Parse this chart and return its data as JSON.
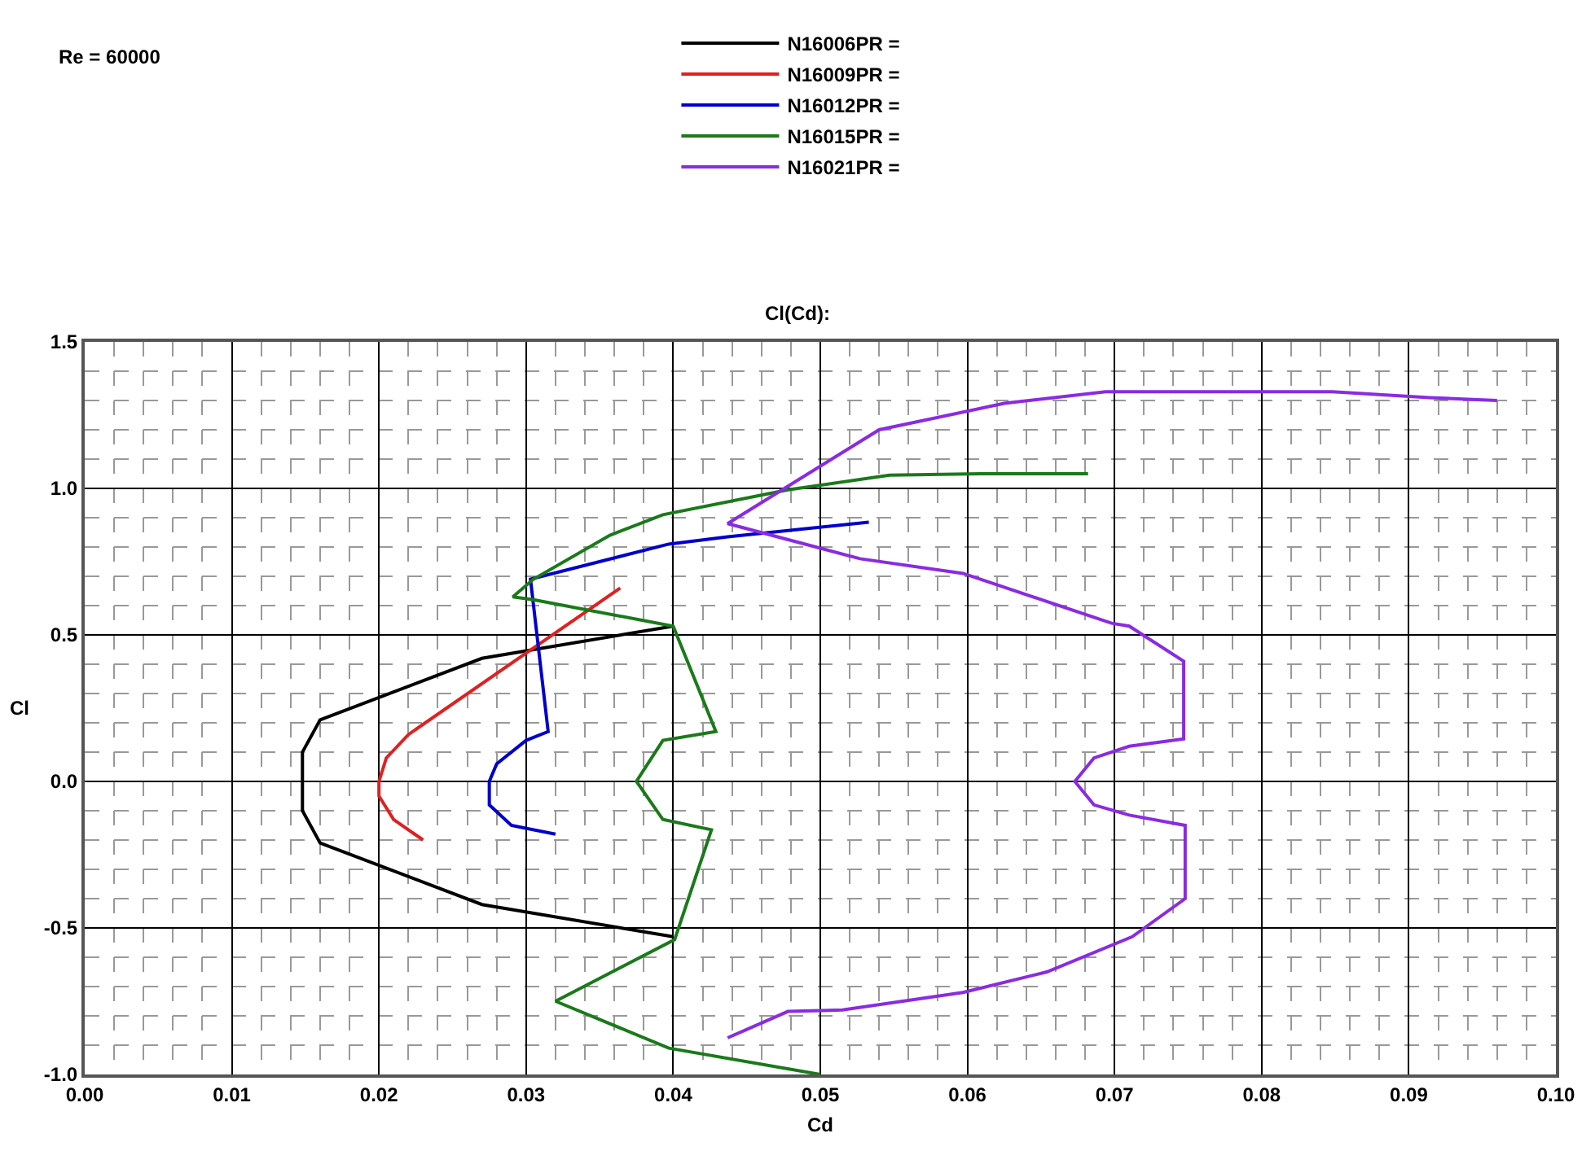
{
  "chart_data": {
    "type": "line",
    "title": "Cl(Cd):",
    "xlabel": "Cd",
    "ylabel": "Cl",
    "legend": "top",
    "grid": true,
    "line_style": "solid",
    "marker": "none",
    "annotations": [
      "Re = 60000"
    ],
    "xlim": [
      0,
      0.1
    ],
    "ylim": [
      -1.0,
      1.5
    ],
    "xticks": [
      {
        "value": 0,
        "label": "0.00"
      },
      {
        "value": 0.01,
        "label": "0.01"
      },
      {
        "value": 0.02,
        "label": "0.02"
      },
      {
        "value": 0.03,
        "label": "0.03"
      },
      {
        "value": 0.04,
        "label": "0.04"
      },
      {
        "value": 0.05,
        "label": "0.05"
      },
      {
        "value": 0.06,
        "label": "0.06"
      },
      {
        "value": 0.07,
        "label": "0.07"
      },
      {
        "value": 0.08,
        "label": "0.08"
      },
      {
        "value": 0.09,
        "label": "0.09"
      },
      {
        "value": 0.1,
        "label": "0.10"
      }
    ],
    "yticks": [
      {
        "value": -1.0,
        "label": "-1.0"
      },
      {
        "value": -0.5,
        "label": "-0.5"
      },
      {
        "value": 0,
        "label": "0.0"
      },
      {
        "value": 0.5,
        "label": "0.5"
      },
      {
        "value": 1.0,
        "label": "1.0"
      },
      {
        "value": 1.5,
        "label": "1.5"
      }
    ],
    "series": [
      {
        "name": "N16006PR =",
        "color": "#000000",
        "x": [
          0.04,
          0.027,
          0.016,
          0.0148,
          0.0148,
          0.0148,
          0.016,
          0.027,
          0.04
        ],
        "values": [
          -0.53,
          -0.42,
          -0.21,
          -0.1,
          0,
          0.1,
          0.21,
          0.42,
          0.53
        ]
      },
      {
        "name": "N16009PR =",
        "color": "#e02020",
        "x": [
          0.023,
          0.021,
          0.02,
          0.02,
          0.0205,
          0.022,
          0.0364
        ],
        "values": [
          -0.2,
          -0.13,
          -0.05,
          0,
          0.08,
          0.16,
          0.66
        ]
      },
      {
        "name": "N16012PR =",
        "color": "#0000cc",
        "x": [
          0.032,
          0.029,
          0.0275,
          0.0275,
          0.028,
          0.03,
          0.0315,
          0.0303,
          0.0397,
          0.0437,
          0.0533
        ],
        "values": [
          -0.18,
          -0.15,
          -0.08,
          0,
          0.06,
          0.14,
          0.17,
          0.69,
          0.81,
          0.835,
          0.885
        ]
      },
      {
        "name": "N16015PR =",
        "color": "#1a7a1a",
        "x": [
          0.05,
          0.0397,
          0.032,
          0.0401,
          0.0426,
          0.0393,
          0.0375,
          0.0393,
          0.0429,
          0.04,
          0.0305,
          0.0291,
          0.0305,
          0.0357,
          0.0393,
          0.0478,
          0.0547,
          0.0609,
          0.0682
        ],
        "values": [
          -1.0,
          -0.91,
          -0.75,
          -0.54,
          -0.165,
          -0.13,
          0,
          0.14,
          0.17,
          0.53,
          0.62,
          0.63,
          0.69,
          0.84,
          0.91,
          0.995,
          1.045,
          1.05,
          1.05
        ]
      },
      {
        "name": "N16021PR =",
        "color": "#8a2be2",
        "x": [
          0.0437,
          0.0478,
          0.0515,
          0.0597,
          0.0654,
          0.0712,
          0.0748,
          0.0748,
          0.071,
          0.0686,
          0.0673,
          0.0686,
          0.071,
          0.0747,
          0.0747,
          0.071,
          0.0698,
          0.0597,
          0.0527,
          0.0437,
          0.054,
          0.0625,
          0.0694,
          0.0848,
          0.0914,
          0.096
        ],
        "values": [
          -0.875,
          -0.785,
          -0.78,
          -0.72,
          -0.65,
          -0.53,
          -0.4,
          -0.15,
          -0.115,
          -0.08,
          0,
          0.08,
          0.12,
          0.145,
          0.41,
          0.53,
          0.54,
          0.71,
          0.76,
          0.88,
          1.2,
          1.29,
          1.33,
          1.33,
          1.31,
          1.3
        ]
      }
    ]
  }
}
